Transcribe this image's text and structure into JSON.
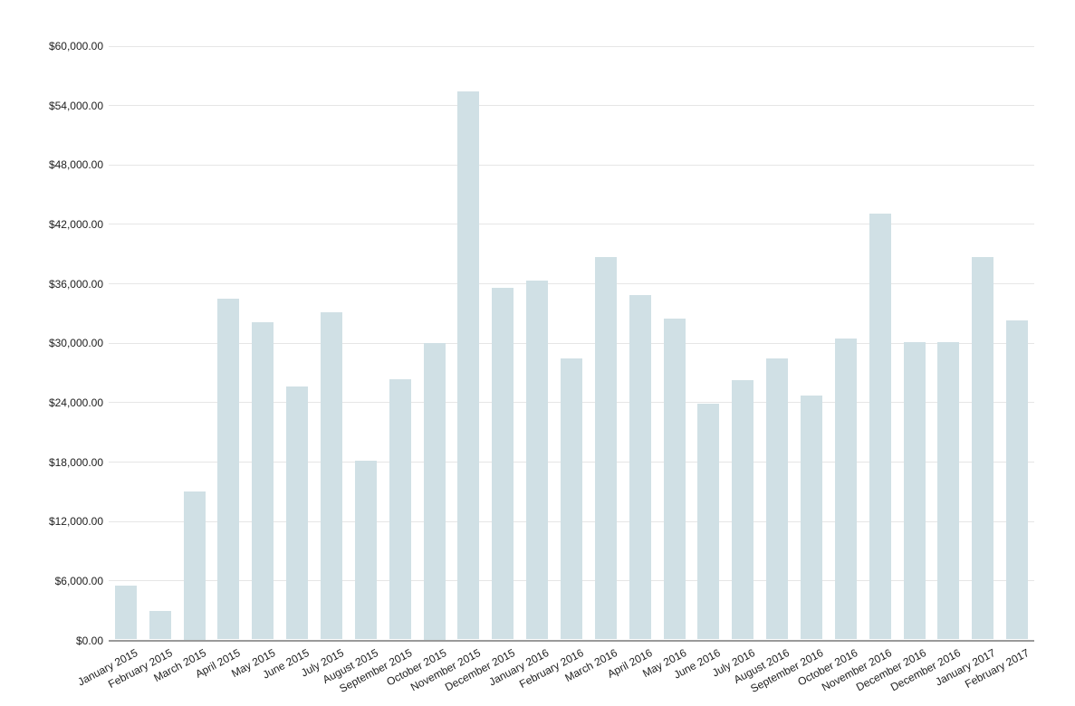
{
  "chart_data": {
    "type": "bar",
    "title": "",
    "xlabel": "",
    "ylabel": "",
    "legend": "none",
    "grid": true,
    "categories": [
      "January 2015",
      "February 2015",
      "March 2015",
      "April 2015",
      "May 2015",
      "June 2015",
      "July 2015",
      "August 2015",
      "September 2015",
      "October 2015",
      "November 2015",
      "December 2015",
      "January 2016",
      "February 2016",
      "March 2016",
      "April 2016",
      "May 2016",
      "June 2016",
      "July 2016",
      "August 2016",
      "September 2016",
      "October 2016",
      "November 2016",
      "December 2016",
      "December 2016",
      "January 2017",
      "February 2017"
    ],
    "values": [
      5500,
      3000,
      15000,
      34500,
      32100,
      25600,
      33100,
      18100,
      26400,
      30000,
      55400,
      35600,
      36300,
      28500,
      38700,
      34900,
      32500,
      23900,
      26300,
      28500,
      24700,
      30500,
      43100,
      30100,
      30100,
      38700,
      32300
    ],
    "ylim": [
      0,
      60000
    ],
    "y_tick_step": 6000,
    "y_tick_labels": [
      "$0.00",
      "$6,000.00",
      "$12,000.00",
      "$18,000.00",
      "$24,000.00",
      "$30,000.00",
      "$36,000.00",
      "$42,000.00",
      "$48,000.00",
      "$54,000.00",
      "$60,000.00"
    ],
    "colors": {
      "bar_fill": "#d0e0e5",
      "gridline": "#e6e6e6",
      "axis_line": "#999999",
      "tick_text": "#212121",
      "background": "#ffffff"
    }
  }
}
